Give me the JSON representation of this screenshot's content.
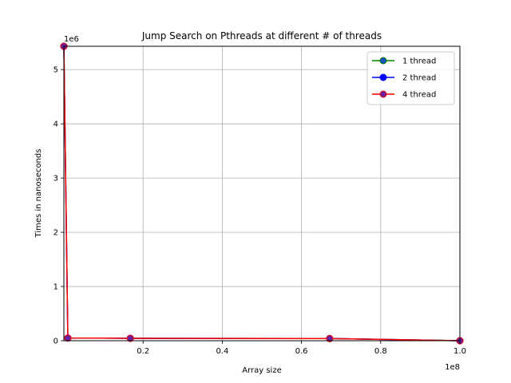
{
  "chart_data": {
    "type": "line",
    "title": "Jump Search on Pthreads at different # of threads",
    "xlabel": "Array size",
    "ylabel": "Times in nanoseconds",
    "x_offset_label": "1e8",
    "y_offset_label": "1e6",
    "xlim": [
      0,
      100000000
    ],
    "ylim": [
      0,
      5430000
    ],
    "x_ticks": [
      20000000,
      40000000,
      60000000,
      80000000,
      100000000
    ],
    "x_tick_labels": [
      "0.2",
      "0.4",
      "0.6",
      "0.8",
      "1.0"
    ],
    "y_ticks": [
      0,
      1000000,
      2000000,
      3000000,
      4000000,
      5000000
    ],
    "y_tick_labels": [
      "0",
      "1",
      "2",
      "3",
      "4",
      "5"
    ],
    "grid": true,
    "legend_position": "top-right",
    "series": [
      {
        "name": "1 thread",
        "color": "#008000",
        "marker_color": "#1f4fbf",
        "x": [
          10,
          1000000,
          16777216,
          67108864,
          100000000
        ],
        "y": [
          5430000,
          50000,
          45000,
          40000,
          0
        ]
      },
      {
        "name": "2 thread",
        "color": "#0000ff",
        "marker_color": "#0000ff",
        "x": [
          10,
          1000000,
          16777216,
          67108864,
          100000000
        ],
        "y": [
          5430000,
          50000,
          45000,
          40000,
          0
        ]
      },
      {
        "name": "4 thread",
        "color": "#ff0000",
        "marker_color": "#6a1fa0",
        "x": [
          10,
          1000000,
          16777216,
          67108864,
          100000000
        ],
        "y": [
          5430000,
          50000,
          45000,
          40000,
          0
        ]
      }
    ]
  }
}
